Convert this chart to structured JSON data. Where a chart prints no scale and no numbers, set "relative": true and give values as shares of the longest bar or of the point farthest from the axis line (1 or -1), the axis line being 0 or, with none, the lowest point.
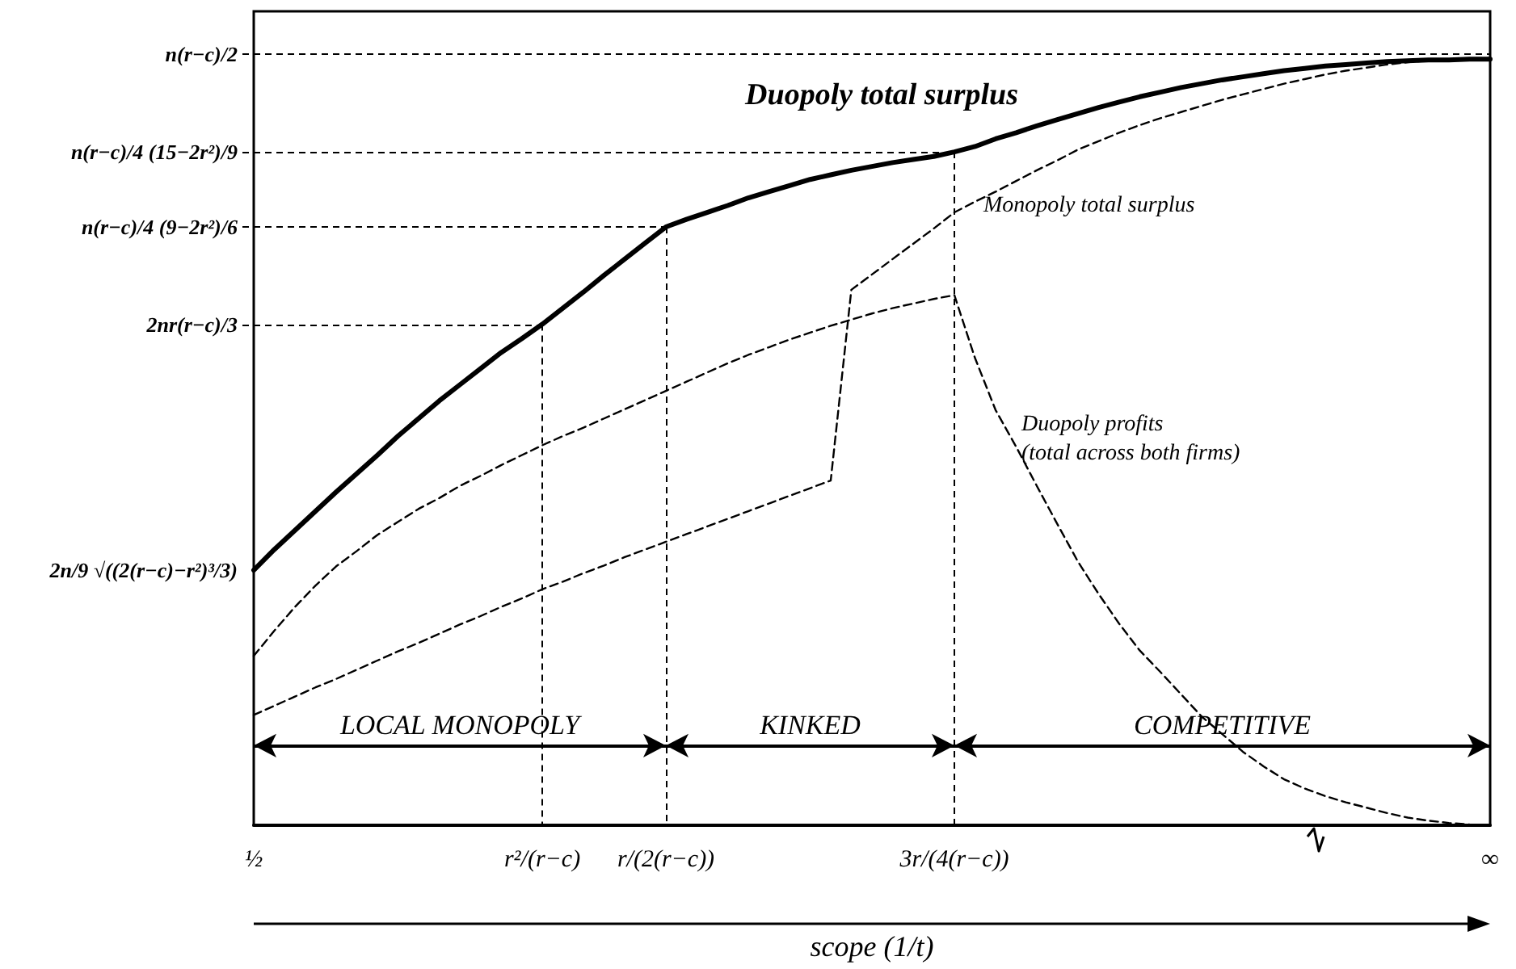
{
  "chart_data": {
    "type": "line",
    "relative": true,
    "xlabel": "scope (1/t)",
    "categories": [
      "½",
      null,
      null,
      null,
      null,
      null,
      null,
      null,
      null,
      null,
      null,
      null,
      null,
      null,
      "r²/(r−c)",
      null,
      null,
      null,
      null,
      null,
      "r/(2(r−c))",
      null,
      null,
      null,
      null,
      null,
      null,
      null,
      null,
      null,
      null,
      null,
      null,
      null,
      "3r/(4(r−c))",
      null,
      null,
      null,
      null,
      null,
      null,
      null,
      null,
      null,
      null,
      null,
      null,
      null,
      null,
      null,
      null,
      null,
      null,
      null,
      null,
      null,
      null,
      null,
      null,
      null,
      "∞"
    ],
    "series": [
      {
        "name": "Duopoly total surplus",
        "color": "#000000",
        "line_style": "solid",
        "values": [
          0.333,
          0.36,
          0.385,
          0.41,
          0.435,
          0.459,
          0.483,
          0.508,
          0.531,
          0.554,
          0.575,
          0.596,
          0.617,
          0.635,
          0.654,
          0.675,
          0.696,
          0.718,
          0.739,
          0.76,
          0.781,
          0.791,
          0.8,
          0.809,
          0.819,
          0.827,
          0.835,
          0.843,
          0.849,
          0.855,
          0.86,
          0.865,
          0.869,
          0.873,
          0.879,
          0.886,
          0.896,
          0.904,
          0.913,
          0.921,
          0.929,
          0.937,
          0.944,
          0.951,
          0.957,
          0.963,
          0.968,
          0.973,
          0.977,
          0.981,
          0.985,
          0.988,
          0.991,
          0.993,
          0.995,
          0.997,
          0.998,
          0.999,
          0.999,
          1.0,
          1.0
        ]
      },
      {
        "name": "Monopoly total surplus",
        "color": "#000000",
        "line_style": "dashed",
        "values": [
          0.144,
          0.156,
          0.168,
          0.18,
          0.191,
          0.203,
          0.215,
          0.227,
          0.238,
          0.25,
          0.262,
          0.273,
          0.285,
          0.296,
          0.308,
          0.318,
          0.329,
          0.339,
          0.35,
          0.36,
          0.37,
          0.38,
          0.39,
          0.4,
          0.41,
          0.42,
          0.43,
          0.44,
          0.45,
          0.699,
          0.719,
          0.739,
          0.759,
          0.779,
          0.8,
          0.814,
          0.827,
          0.841,
          0.855,
          0.868,
          0.882,
          0.893,
          0.904,
          0.914,
          0.923,
          0.931,
          0.939,
          0.947,
          0.954,
          0.961,
          0.968,
          0.974,
          0.98,
          0.985,
          0.989,
          0.993,
          0.996,
          0.998,
          0.999,
          1.0,
          1.0
        ]
      },
      {
        "name": "Duopoly profits (total across both firms)",
        "color": "#000000",
        "line_style": "dashed",
        "values": [
          0.221,
          0.254,
          0.285,
          0.313,
          0.338,
          0.358,
          0.379,
          0.396,
          0.413,
          0.427,
          0.443,
          0.456,
          0.47,
          0.483,
          0.496,
          0.508,
          0.519,
          0.531,
          0.543,
          0.555,
          0.567,
          0.579,
          0.591,
          0.603,
          0.614,
          0.624,
          0.634,
          0.643,
          0.652,
          0.66,
          0.668,
          0.675,
          0.681,
          0.687,
          0.692,
          0.61,
          0.542,
          0.494,
          0.443,
          0.393,
          0.344,
          0.302,
          0.263,
          0.228,
          0.2,
          0.171,
          0.142,
          0.119,
          0.096,
          0.077,
          0.06,
          0.048,
          0.038,
          0.03,
          0.023,
          0.016,
          0.01,
          0.006,
          0.003,
          0.001,
          0
        ]
      }
    ],
    "annotations": [
      "n(r−c)/2",
      {
        "text": "n(r−c)/4 (15−2r²)/9",
        "x": "3r/(4(r−c))",
        "y": 0.879
      },
      {
        "text": "n(r−c)/4 (9−2r²)/6",
        "x": "r/(2(r−c))",
        "y": 0.781
      },
      {
        "text": "2nr(r−c)/3",
        "x": "r²/(r−c)",
        "y": 0.654
      },
      {
        "text": "2n/9 √((2(r−c)−r²)³/3)",
        "x": "½",
        "y": 0.333
      },
      "LOCAL MONOPOLY",
      "KINKED",
      "COMPETITIVE"
    ]
  }
}
